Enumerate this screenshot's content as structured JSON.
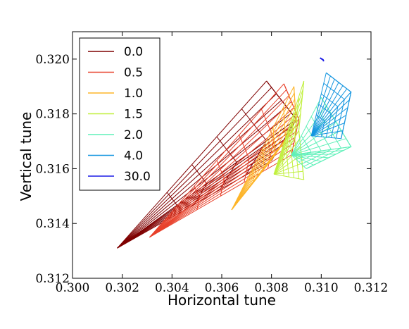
{
  "chart_data": {
    "type": "line",
    "title": "",
    "xlabel": "Horizontal tune",
    "ylabel": "Vertical tune",
    "xlim": [
      0.3,
      0.312
    ],
    "ylim": [
      0.312,
      0.321
    ],
    "xticks": [
      "0.300",
      "0.302",
      "0.304",
      "0.306",
      "0.308",
      "0.310",
      "0.312"
    ],
    "yticks": [
      "0.312",
      "0.314",
      "0.316",
      "0.318",
      "0.320"
    ],
    "grid": false,
    "legend_position": "top-left",
    "series": [
      {
        "name": "0.0",
        "color": "#7f0000",
        "corner": [
          0.3018,
          0.3131
        ],
        "tip_top": [
          0.3078,
          0.3192
        ],
        "tip_bottom": [
          0.308,
          0.3163
        ],
        "tip_mid": [
          0.309,
          0.3178
        ]
      },
      {
        "name": "0.5",
        "color": "#e8412b",
        "corner": [
          0.3031,
          0.3135
        ],
        "tip_top": [
          0.3085,
          0.3191
        ],
        "tip_bottom": [
          0.3088,
          0.3165
        ],
        "tip_mid": [
          0.3091,
          0.3178
        ]
      },
      {
        "name": "1.0",
        "color": "#fdb52a",
        "corner": [
          0.3064,
          0.3145
        ],
        "tip_top": [
          0.3089,
          0.319
        ],
        "tip_bottom": [
          0.3079,
          0.3162
        ],
        "tip_mid": [
          0.309,
          0.3176
        ]
      },
      {
        "name": "1.5",
        "color": "#c1f03e",
        "corner": [
          0.3081,
          0.3158
        ],
        "tip_top": [
          0.3093,
          0.3192
        ],
        "tip_bottom": [
          0.3093,
          0.3156
        ],
        "tip_mid": [
          0.3091,
          0.3174
        ]
      },
      {
        "name": "2.0",
        "color": "#5ff0b9",
        "corner": [
          0.3088,
          0.3165
        ],
        "tip_top": [
          0.31,
          0.3186
        ],
        "tip_bottom": [
          0.3094,
          0.316
        ],
        "tip_mid": [
          0.3112,
          0.3168
        ]
      },
      {
        "name": "4.0",
        "color": "#1596e0",
        "corner": [
          0.3096,
          0.3172
        ],
        "tip_top": [
          0.3102,
          0.3195
        ],
        "tip_bottom": [
          0.3108,
          0.3171
        ],
        "tip_mid": [
          0.3112,
          0.3188
        ]
      },
      {
        "name": "30.0",
        "color": "#1a1ae6",
        "points": [
          [
            0.30995,
            0.32004
          ],
          [
            0.31007,
            0.31998
          ],
          [
            0.3101,
            0.31992
          ]
        ]
      }
    ]
  }
}
